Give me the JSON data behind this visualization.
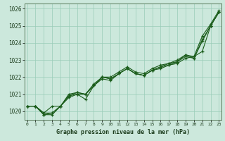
{
  "title": "Graphe pression niveau de la mer (hPa)",
  "xlabel_hours": [
    0,
    1,
    2,
    3,
    4,
    5,
    6,
    7,
    8,
    9,
    10,
    11,
    12,
    13,
    14,
    15,
    16,
    17,
    18,
    19,
    20,
    21,
    22,
    23
  ],
  "ylim": [
    1019.5,
    1026.3
  ],
  "yticks": [
    1020,
    1021,
    1022,
    1023,
    1024,
    1025,
    1026
  ],
  "bg_color": "#cce8dc",
  "grid_color": "#99ccb8",
  "line_color": "#1a5c1a",
  "series": [
    [
      1020.3,
      1020.3,
      1019.9,
      1020.3,
      1020.3,
      1020.9,
      1021.0,
      1021.0,
      1021.5,
      1021.9,
      1021.8,
      1022.2,
      1022.5,
      1022.2,
      1022.1,
      1022.4,
      1022.5,
      1022.7,
      1022.8,
      1023.1,
      1023.2,
      1023.5,
      1025.0,
      1025.8
    ],
    [
      1020.3,
      1020.3,
      1019.9,
      1019.9,
      1020.3,
      1020.8,
      1021.0,
      1020.7,
      1021.5,
      1022.0,
      1021.9,
      1022.2,
      1022.5,
      1022.2,
      1022.1,
      1022.4,
      1022.6,
      1022.8,
      1022.9,
      1023.3,
      1023.1,
      1024.1,
      1025.0,
      1025.8
    ],
    [
      1020.3,
      1020.3,
      1019.8,
      1019.8,
      1020.3,
      1020.9,
      1021.1,
      1021.0,
      1021.5,
      1022.0,
      1021.9,
      1022.2,
      1022.5,
      1022.2,
      1022.1,
      1022.4,
      1022.6,
      1022.7,
      1022.9,
      1023.2,
      1023.1,
      1024.2,
      1025.0,
      1025.8
    ],
    [
      1020.3,
      1020.3,
      1019.8,
      1019.9,
      1020.3,
      1021.0,
      1021.1,
      1021.0,
      1021.6,
      1022.0,
      1022.0,
      1022.3,
      1022.6,
      1022.3,
      1022.2,
      1022.5,
      1022.7,
      1022.8,
      1023.0,
      1023.3,
      1023.2,
      1024.4,
      1025.1,
      1025.9
    ]
  ]
}
